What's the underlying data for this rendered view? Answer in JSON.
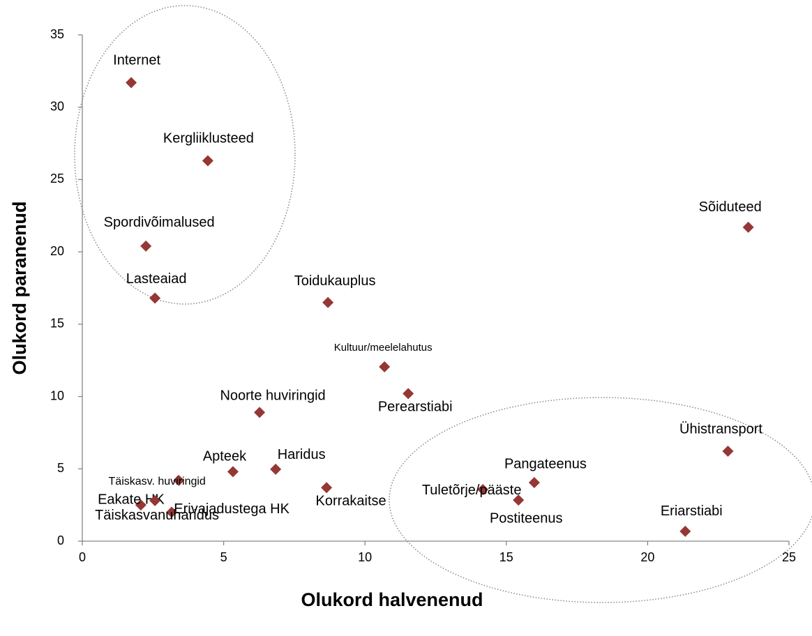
{
  "chart_data": {
    "type": "scatter",
    "xlabel": "Olukord halvenenud",
    "ylabel": "Olukord paranenud",
    "color": "#953735",
    "xlim": [
      0,
      25
    ],
    "xticks": [
      0,
      5,
      10,
      15,
      20,
      25
    ],
    "ylim": [
      0,
      35
    ],
    "yticks": [
      0,
      5,
      10,
      15,
      20,
      25,
      30,
      35
    ],
    "grid": false,
    "points": [
      {
        "label": "Internet",
        "x": 1.73,
        "y": 31.7
      },
      {
        "label": "Kergliiklusteed",
        "x": 4.44,
        "y": 26.3
      },
      {
        "label": "Spordivõimalused",
        "x": 2.25,
        "y": 20.4
      },
      {
        "label": "Lasteaiad",
        "x": 2.57,
        "y": 16.8
      },
      {
        "label": "Toidukauplus",
        "x": 8.69,
        "y": 16.5
      },
      {
        "label": "Kultuur/meelelahutus",
        "x": 10.69,
        "y": 12.05
      },
      {
        "label": "Perearstiabi",
        "x": 11.53,
        "y": 10.2
      },
      {
        "label": "Noorte huviringid",
        "x": 6.27,
        "y": 8.9
      },
      {
        "label": "Apteek",
        "x": 5.33,
        "y": 4.8
      },
      {
        "label": "Haridus",
        "x": 6.84,
        "y": 4.97
      },
      {
        "label": "Täiskasv. huviringid",
        "x": 3.41,
        "y": 4.2
      },
      {
        "label": "Eakate HK",
        "x": 2.07,
        "y": 2.5
      },
      {
        "label": "Erivajadustega HK",
        "x": 2.57,
        "y": 2.8
      },
      {
        "label": "Täiskasvanuharidus",
        "x": 3.16,
        "y": 2.0
      },
      {
        "label": "Korrakaitse",
        "x": 8.64,
        "y": 3.7
      },
      {
        "label": "Tuletõrje/pääste",
        "x": 14.17,
        "y": 3.57
      },
      {
        "label": "Pangateenus",
        "x": 15.99,
        "y": 4.05
      },
      {
        "label": "Postiteenus",
        "x": 15.43,
        "y": 2.84
      },
      {
        "label": "Ühistransport",
        "x": 22.84,
        "y": 6.22
      },
      {
        "label": "Eriarstiabi",
        "x": 21.33,
        "y": 0.68
      },
      {
        "label": "Sõiduteed",
        "x": 23.56,
        "y": 21.7
      }
    ]
  }
}
